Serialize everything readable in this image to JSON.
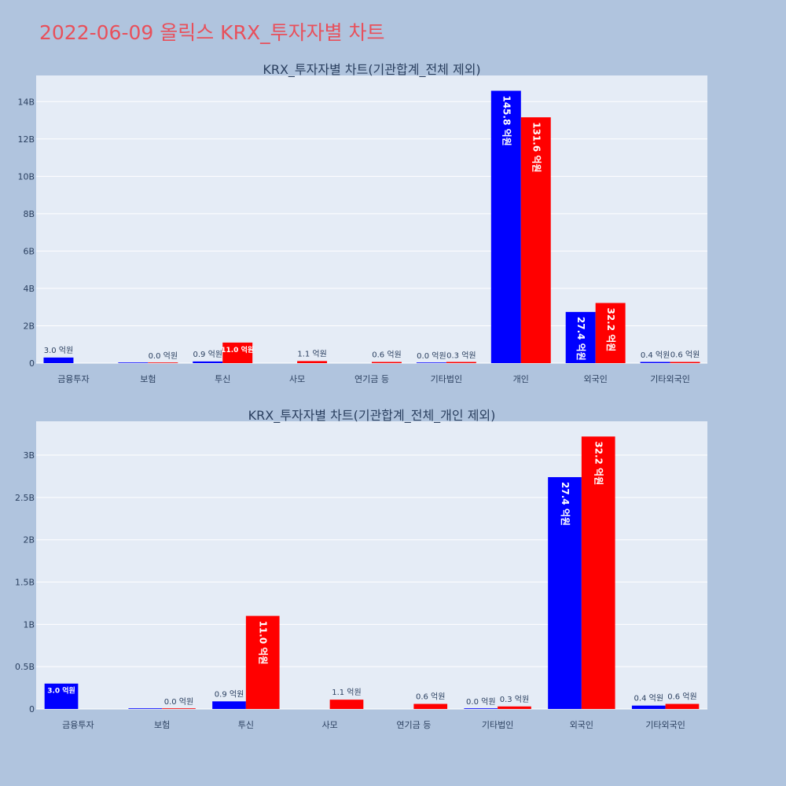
{
  "page": {
    "title": "2022-06-09 올릭스 KRX_투자자별 차트"
  },
  "colors": {
    "buy": "#0000ff",
    "sell": "#ff0000",
    "plot_bg": "#e5ecf6",
    "page_bg": "#b0c4de"
  },
  "chart_data": [
    {
      "type": "bar",
      "title": "KRX_투자자별 차트(기관합계_전체 제외)",
      "categories": [
        "금융투자",
        "보험",
        "투신",
        "사모",
        "연기금 등",
        "기타법인",
        "개인",
        "외국인",
        "기타외국인"
      ],
      "series": [
        {
          "color": "#0000ff",
          "values": [
            0.3,
            0.0,
            0.09,
            null,
            null,
            0.0,
            14.58,
            2.74,
            0.04
          ],
          "labels": [
            "3.0 억원",
            "",
            "0.9 억원",
            "",
            "",
            "0.0 억원",
            "145.8 억원",
            "27.4 억원",
            "0.4 억원"
          ]
        },
        {
          "color": "#ff0000",
          "values": [
            null,
            0.0,
            1.1,
            0.11,
            0.06,
            0.03,
            13.16,
            3.22,
            0.06
          ],
          "labels": [
            "",
            "0.0 억원",
            "11.0 억원",
            "1.1 억원",
            "0.6 억원",
            "0.3 억원",
            "131.6 억원",
            "32.2 억원",
            "0.6 억원"
          ]
        }
      ],
      "ylim": [
        0,
        15.4
      ],
      "yticks": [
        0,
        2,
        4,
        6,
        8,
        10,
        12,
        14
      ],
      "ytick_labels": [
        "0",
        "2B",
        "4B",
        "6B",
        "8B",
        "10B",
        "12B",
        "14B"
      ],
      "grid": true
    },
    {
      "type": "bar",
      "title": "KRX_투자자별 차트(기관합계_전체_개인 제외)",
      "categories": [
        "금융투자",
        "보험",
        "투신",
        "사모",
        "연기금 등",
        "기타법인",
        "외국인",
        "기타외국인"
      ],
      "series": [
        {
          "color": "#0000ff",
          "values": [
            0.3,
            0.0,
            0.09,
            null,
            null,
            0.0,
            2.74,
            0.04
          ],
          "labels": [
            "3.0 억원",
            "",
            "0.9 억원",
            "",
            "",
            "0.0 억원",
            "27.4 억원",
            "0.4 억원"
          ]
        },
        {
          "color": "#ff0000",
          "values": [
            null,
            0.0,
            1.1,
            0.11,
            0.06,
            0.03,
            3.22,
            0.06
          ],
          "labels": [
            "",
            "0.0 억원",
            "11.0 억원",
            "1.1 억원",
            "0.6 억원",
            "0.3 억원",
            "32.2 억원",
            "0.6 억원"
          ]
        }
      ],
      "ylim": [
        0,
        3.4
      ],
      "yticks": [
        0,
        0.5,
        1,
        1.5,
        2,
        2.5,
        3
      ],
      "ytick_labels": [
        "0",
        "0.5B",
        "1B",
        "1.5B",
        "2B",
        "2.5B",
        "3B"
      ],
      "grid": true
    }
  ]
}
